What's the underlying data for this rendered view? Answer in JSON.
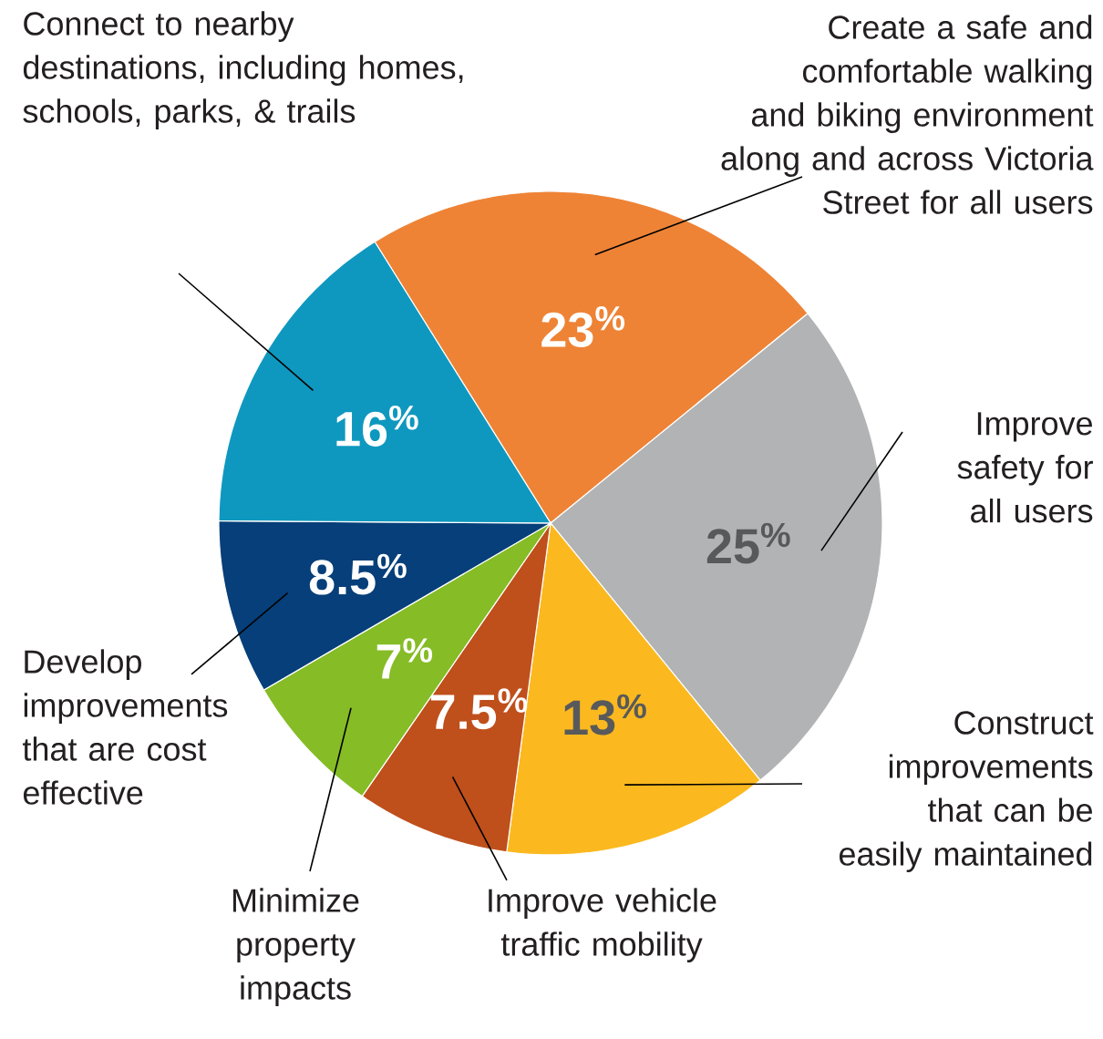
{
  "chart_data": {
    "type": "pie",
    "categories": [
      "Create a safe and comfortable walking and biking environment along and across Victoria Street for all users",
      "Improve safety for all users",
      "Construct improvements that can be easily maintained",
      "Improve vehicle traffic mobility",
      "Minimize property impacts",
      "Develop improvements that are cost effective",
      "Connect to nearby destinations, including homes, schools, parks, & trails"
    ],
    "values": [
      23,
      25,
      13,
      7.5,
      7,
      8.5,
      16
    ],
    "value_labels": [
      "23$^{%}$",
      "25$^{%}$",
      "13$^{%}$",
      "7.5$^{%}$",
      "7$^{%}$",
      "8.5$^{%}$",
      "16$^{%}$"
    ],
    "colors": [
      "#ee8336",
      "#b2b3b5",
      "#fbb91f",
      "#bf4f1b",
      "#86bc25",
      "#063f79",
      "#0f98bf"
    ]
  }
}
